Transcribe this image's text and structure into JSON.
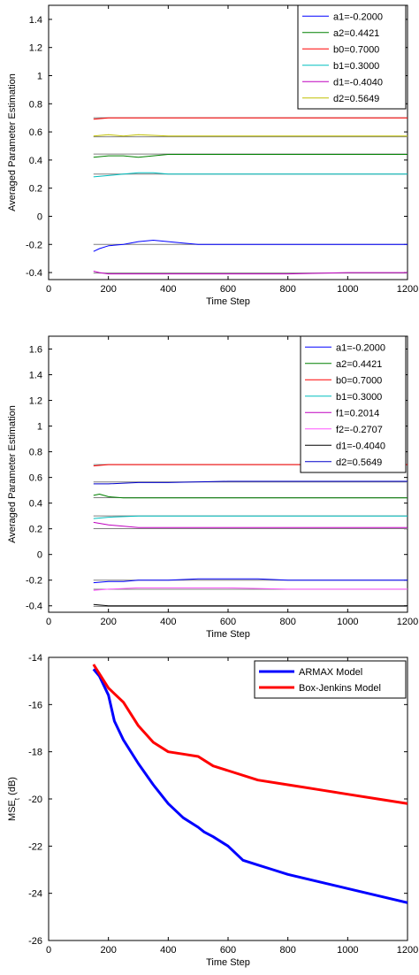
{
  "chart_data": [
    {
      "type": "line",
      "title": "",
      "xlabel": "Time Step",
      "ylabel": "Averaged Parameter Estimation",
      "xlim": [
        0,
        1200
      ],
      "ylim": [
        -0.45,
        1.5
      ],
      "xticks": [
        0,
        200,
        400,
        600,
        800,
        1000,
        1200
      ],
      "yticks": [
        -0.4,
        -0.2,
        0,
        0.2,
        0.4,
        0.6,
        0.8,
        1,
        1.2,
        1.4
      ],
      "ytick_labels": [
        "-0.4",
        "-0.2",
        "0",
        "0.2",
        "0.4",
        "0.6",
        "0.8",
        "1",
        "1.2",
        "1.4"
      ],
      "legend_position": "top-right",
      "series": [
        {
          "name": "a1=-0.2000",
          "color": "#0000ff",
          "true_value": -0.2,
          "x": [
            150,
            170,
            200,
            250,
            300,
            350,
            400,
            450,
            500,
            600,
            800,
            1000,
            1200
          ],
          "y": [
            -0.25,
            -0.23,
            -0.21,
            -0.2,
            -0.18,
            -0.17,
            -0.18,
            -0.19,
            -0.2,
            -0.2,
            -0.2,
            -0.2,
            -0.2
          ]
        },
        {
          "name": "a2=0.4421",
          "color": "#008000",
          "true_value": 0.4421,
          "x": [
            150,
            200,
            250,
            300,
            400,
            500,
            600,
            800,
            1000,
            1200
          ],
          "y": [
            0.42,
            0.43,
            0.43,
            0.42,
            0.44,
            0.44,
            0.44,
            0.44,
            0.44,
            0.44
          ]
        },
        {
          "name": "b0=0.7000",
          "color": "#ff0000",
          "true_value": 0.7,
          "x": [
            150,
            200,
            300,
            400,
            600,
            800,
            1000,
            1200
          ],
          "y": [
            0.69,
            0.7,
            0.7,
            0.7,
            0.7,
            0.7,
            0.7,
            0.7
          ]
        },
        {
          "name": "b1=0.3000",
          "color": "#00bfbf",
          "true_value": 0.3,
          "x": [
            150,
            200,
            250,
            300,
            350,
            400,
            600,
            800,
            1000,
            1200
          ],
          "y": [
            0.28,
            0.29,
            0.3,
            0.31,
            0.31,
            0.3,
            0.3,
            0.3,
            0.3,
            0.3
          ]
        },
        {
          "name": "d1=-0.4040",
          "color": "#bf00bf",
          "true_value": -0.404,
          "x": [
            150,
            170,
            200,
            300,
            400,
            600,
            800,
            1000,
            1200
          ],
          "y": [
            -0.39,
            -0.4,
            -0.41,
            -0.41,
            -0.41,
            -0.41,
            -0.41,
            -0.4,
            -0.4
          ]
        },
        {
          "name": "d2=0.5649",
          "color": "#bfbf00",
          "true_value": 0.5649,
          "x": [
            150,
            200,
            250,
            300,
            400,
            600,
            800,
            1000,
            1200
          ],
          "y": [
            0.57,
            0.58,
            0.57,
            0.58,
            0.57,
            0.57,
            0.57,
            0.57,
            0.57
          ]
        }
      ]
    },
    {
      "type": "line",
      "title": "",
      "xlabel": "Time Step",
      "ylabel": "Averaged Parameter Estimation",
      "xlim": [
        0,
        1200
      ],
      "ylim": [
        -0.45,
        1.7
      ],
      "xticks": [
        0,
        200,
        400,
        600,
        800,
        1000,
        1200
      ],
      "yticks": [
        -0.4,
        -0.2,
        0,
        0.2,
        0.4,
        0.6,
        0.8,
        1,
        1.2,
        1.4,
        1.6
      ],
      "ytick_labels": [
        "-0.4",
        "-0.2",
        "0",
        "0.2",
        "0.4",
        "0.6",
        "0.8",
        "1",
        "1.2",
        "1.4",
        "1.6"
      ],
      "legend_position": "top-right",
      "series": [
        {
          "name": "a1=-0.2000",
          "color": "#0000ff",
          "true_value": -0.2,
          "x": [
            150,
            200,
            250,
            300,
            400,
            500,
            600,
            700,
            800,
            1000,
            1200
          ],
          "y": [
            -0.22,
            -0.21,
            -0.21,
            -0.2,
            -0.2,
            -0.19,
            -0.19,
            -0.19,
            -0.2,
            -0.2,
            -0.2
          ]
        },
        {
          "name": "a2=0.4421",
          "color": "#008000",
          "true_value": 0.4421,
          "x": [
            150,
            170,
            200,
            250,
            300,
            400,
            600,
            800,
            1000,
            1200
          ],
          "y": [
            0.46,
            0.47,
            0.45,
            0.44,
            0.44,
            0.44,
            0.44,
            0.44,
            0.44,
            0.44
          ]
        },
        {
          "name": "b0=0.7000",
          "color": "#ff0000",
          "true_value": 0.7,
          "x": [
            150,
            200,
            300,
            400,
            600,
            800,
            1000,
            1200
          ],
          "y": [
            0.69,
            0.7,
            0.7,
            0.7,
            0.7,
            0.7,
            0.7,
            0.7
          ]
        },
        {
          "name": "b1=0.3000",
          "color": "#00bfbf",
          "true_value": 0.3,
          "x": [
            150,
            200,
            300,
            400,
            600,
            800,
            1000,
            1200
          ],
          "y": [
            0.28,
            0.29,
            0.3,
            0.3,
            0.3,
            0.3,
            0.3,
            0.3
          ]
        },
        {
          "name": "f1=0.2014",
          "color": "#bf00bf",
          "true_value": 0.2014,
          "x": [
            150,
            200,
            250,
            300,
            400,
            600,
            800,
            1000,
            1200
          ],
          "y": [
            0.25,
            0.23,
            0.22,
            0.21,
            0.21,
            0.21,
            0.21,
            0.21,
            0.21
          ]
        },
        {
          "name": "f2=-0.2707",
          "color": "#ff55ff",
          "true_value": -0.2707,
          "x": [
            150,
            200,
            300,
            400,
            600,
            800,
            1000,
            1200
          ],
          "y": [
            -0.28,
            -0.27,
            -0.26,
            -0.26,
            -0.26,
            -0.27,
            -0.27,
            -0.27
          ]
        },
        {
          "name": "d1=-0.4040",
          "color": "#000000",
          "true_value": -0.404,
          "x": [
            150,
            200,
            300,
            400,
            600,
            800,
            1000,
            1200
          ],
          "y": [
            -0.39,
            -0.4,
            -0.4,
            -0.4,
            -0.4,
            -0.4,
            -0.4,
            -0.4
          ]
        },
        {
          "name": "d2=0.5649",
          "color": "#0000cc",
          "true_value": 0.5649,
          "x": [
            150,
            200,
            300,
            400,
            600,
            800,
            1000,
            1200
          ],
          "y": [
            0.55,
            0.55,
            0.56,
            0.56,
            0.57,
            0.57,
            0.57,
            0.57
          ]
        }
      ]
    },
    {
      "type": "line",
      "title": "",
      "xlabel": "Time Step",
      "ylabel": "MSE",
      "ylabel_sub": "t",
      "ylabel_unit": " (dB)",
      "xlim": [
        0,
        1200
      ],
      "ylim": [
        -26,
        -14
      ],
      "xticks": [
        0,
        200,
        400,
        600,
        800,
        1000,
        1200
      ],
      "yticks": [
        -26,
        -24,
        -22,
        -20,
        -18,
        -16,
        -14
      ],
      "ytick_labels": [
        "-26",
        "-24",
        "-22",
        "-20",
        "-18",
        "-16",
        "-14"
      ],
      "legend_position": "top-right",
      "series": [
        {
          "name": "ARMAX Model",
          "color": "#0000ff",
          "x": [
            150,
            170,
            200,
            220,
            250,
            300,
            350,
            400,
            450,
            500,
            520,
            550,
            600,
            650,
            700,
            750,
            800,
            900,
            1000,
            1100,
            1200
          ],
          "y": [
            -14.5,
            -14.8,
            -15.6,
            -16.7,
            -17.5,
            -18.5,
            -19.4,
            -20.2,
            -20.8,
            -21.2,
            -21.4,
            -21.6,
            -22.0,
            -22.6,
            -22.8,
            -23.0,
            -23.2,
            -23.5,
            -23.8,
            -24.1,
            -24.4
          ]
        },
        {
          "name": "Box-Jenkins Model",
          "color": "#ff0000",
          "x": [
            150,
            200,
            250,
            300,
            350,
            400,
            450,
            500,
            550,
            600,
            700,
            800,
            900,
            1000,
            1100,
            1200
          ],
          "y": [
            -14.3,
            -15.3,
            -15.9,
            -16.9,
            -17.6,
            -18.0,
            -18.1,
            -18.2,
            -18.6,
            -18.8,
            -19.2,
            -19.4,
            -19.6,
            -19.8,
            -20.0,
            -20.2
          ]
        }
      ]
    }
  ]
}
